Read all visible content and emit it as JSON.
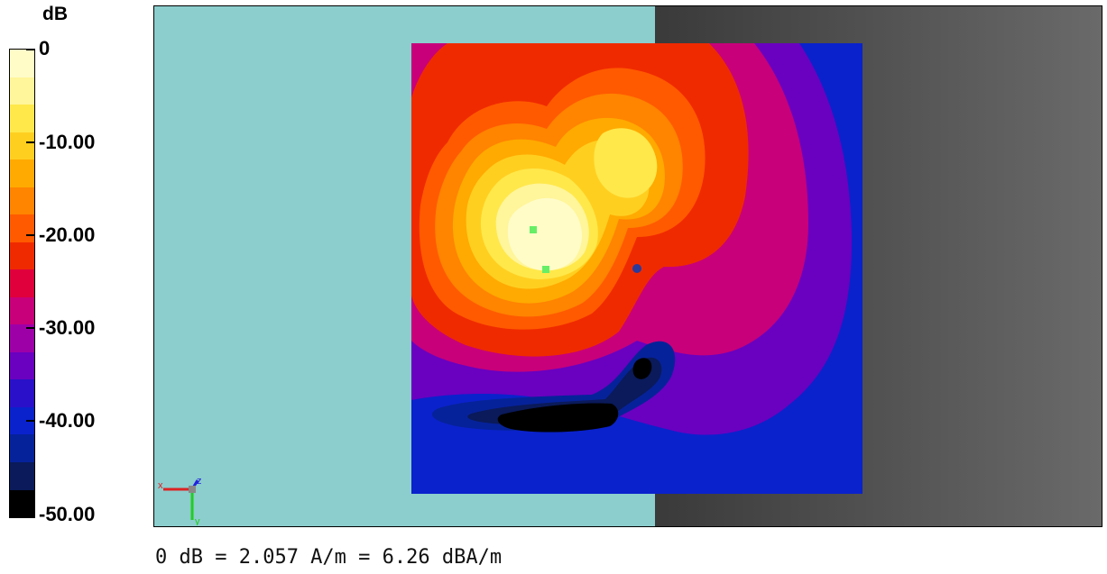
{
  "legend": {
    "unit": "dB",
    "labels": [
      "0",
      "-10.00",
      "-20.00",
      "-30.00",
      "-40.00",
      "-50.00"
    ],
    "bands": [
      "#fffcc8",
      "#fff59a",
      "#ffe84a",
      "#ffcf20",
      "#ffaa00",
      "#ff8400",
      "#ff5a00",
      "#f02a00",
      "#e0003c",
      "#c8007a",
      "#9e00a8",
      "#6a00c0",
      "#2a10c8",
      "#0a22cc",
      "#06229a",
      "#0a1a5a",
      "#000000"
    ]
  },
  "caption": "0 dB = 2.057 A/m = 6.26 dBA/m",
  "chart_data": {
    "type": "heatmap",
    "unit": "dB",
    "clim": [
      -50,
      0
    ],
    "legend_ticks": [
      0,
      -10,
      -20,
      -30,
      -40,
      -50
    ],
    "contour_step_db": 3,
    "peak_db": 0,
    "min_db": -50
  },
  "axes_triad": {
    "x": "x",
    "y": "y",
    "z": "z"
  }
}
